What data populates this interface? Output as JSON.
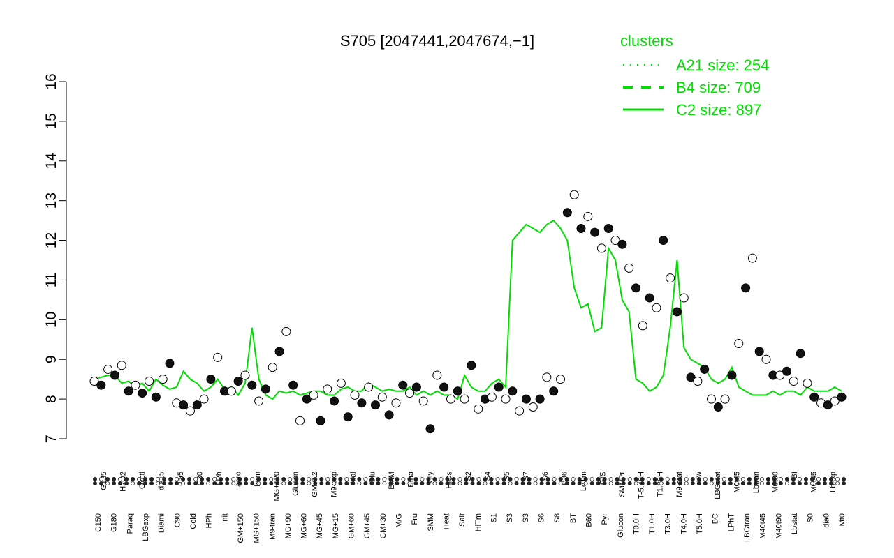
{
  "chart_data": {
    "type": "line",
    "title": "S705 [2047441,2047674,−1]",
    "xlabel": "",
    "ylabel": "",
    "ylim": [
      7,
      16
    ],
    "yticks": [
      7,
      8,
      9,
      10,
      11,
      12,
      13,
      14,
      15,
      16
    ],
    "grid": false,
    "legend_position": "top-right",
    "legend": {
      "title": "clusters",
      "entries": [
        {
          "label": "A21 size: 254",
          "style": "dotted"
        },
        {
          "label": "B4 size: 709",
          "style": "dashed"
        },
        {
          "label": "C2 size: 897",
          "style": "solid"
        }
      ]
    },
    "colors": {
      "series": "#00dd00",
      "point_fill": "#ffffff",
      "point_dark": "#111111",
      "axis": "#000000"
    },
    "x_tick_labels_top": [
      "G135",
      "H2O2",
      "Oxctl",
      "dia15",
      "dia5",
      "C30",
      "LPh",
      "aero",
      "ferm",
      "MG+120",
      "Glucon",
      "GM-0.2",
      "M9-exp",
      "Mal",
      "Glu",
      "BMM",
      "Etha",
      "Gly",
      "HiOs",
      "S2",
      "S4",
      "S5",
      "S7",
      "S6",
      "B36",
      "LoTm",
      "G/S",
      "SMMPr",
      "T-5.40H",
      "T1.30H",
      "M9-stat",
      "Sw",
      "LBGstat",
      "M0t45",
      "Lbtran",
      "M0t90",
      "BI",
      "M0t45",
      "Lbexp"
    ],
    "x_tick_labels_bottom": [
      "G150",
      "G180",
      "Paraq",
      "LBGexp",
      "Diami",
      "C90",
      "Cold",
      "HPh",
      "nit",
      "GM+150",
      "MG+150",
      "M9-tran",
      "MG+90",
      "MG+60",
      "MG+45",
      "MG+15",
      "GM+60",
      "GM+45",
      "GM+30",
      "M/G",
      "Fru",
      "SMM",
      "Heat",
      "Salt",
      "HiTm",
      "S1",
      "S3",
      "S3",
      "S6",
      "S8",
      "BT",
      "B60",
      "Pyr",
      "Glucon",
      "T0.0H",
      "T1.0H",
      "T3.0H",
      "T4.0H",
      "T5.0H",
      "BC",
      "LPhT",
      "LBGtran",
      "M40t45",
      "M40t90",
      "Lbstat",
      "S0",
      "dia0",
      "Mt0"
    ],
    "line": [
      8.5,
      8.55,
      8.6,
      8.6,
      8.4,
      8.45,
      8.3,
      8.4,
      8.2,
      8.5,
      8.35,
      8.25,
      8.3,
      8.7,
      8.5,
      8.4,
      8.2,
      8.3,
      8.5,
      8.25,
      8.3,
      8.1,
      8.4,
      9.8,
      8.5,
      8.1,
      8.0,
      8.2,
      8.15,
      8.2,
      8.1,
      8.15,
      8.2,
      8.2,
      8.1,
      8.1,
      8.25,
      8.3,
      8.2,
      8.2,
      8.4,
      8.3,
      8.2,
      8.25,
      8.2,
      8.2,
      8.3,
      8.1,
      8.2,
      8.1,
      8.2,
      8.1,
      8.1,
      8.0,
      8.6,
      8.3,
      8.2,
      8.2,
      8.4,
      8.5,
      8.3,
      12.0,
      12.2,
      12.4,
      12.3,
      12.2,
      12.4,
      12.5,
      12.3,
      12.0,
      10.8,
      10.3,
      10.4,
      9.7,
      9.8,
      11.8,
      11.5,
      10.5,
      10.2,
      8.5,
      8.4,
      8.2,
      8.3,
      8.6,
      9.8,
      11.5,
      9.3,
      9.0,
      8.9,
      8.8,
      8.5,
      8.4,
      8.5,
      8.8,
      8.3,
      8.2,
      8.1,
      8.1,
      8.1,
      8.2,
      8.1,
      8.2,
      8.2,
      8.1,
      8.3,
      8.2,
      8.2,
      8.2,
      8.3,
      8.2
    ],
    "points": [
      {
        "x": 0.0,
        "y": 8.45
      },
      {
        "x": 0.8,
        "y": 8.35
      },
      {
        "x": 1.6,
        "y": 8.75
      },
      {
        "x": 2.4,
        "y": 8.6
      },
      {
        "x": 3.2,
        "y": 8.85
      },
      {
        "x": 4.0,
        "y": 8.2
      },
      {
        "x": 4.8,
        "y": 8.35
      },
      {
        "x": 5.6,
        "y": 8.15
      },
      {
        "x": 6.4,
        "y": 8.45
      },
      {
        "x": 7.2,
        "y": 8.05
      },
      {
        "x": 8.0,
        "y": 8.5
      },
      {
        "x": 8.8,
        "y": 8.9
      },
      {
        "x": 9.6,
        "y": 7.9
      },
      {
        "x": 10.4,
        "y": 7.85
      },
      {
        "x": 11.2,
        "y": 7.7
      },
      {
        "x": 12.0,
        "y": 7.85
      },
      {
        "x": 12.8,
        "y": 8.0
      },
      {
        "x": 13.6,
        "y": 8.5
      },
      {
        "x": 14.4,
        "y": 9.05
      },
      {
        "x": 15.2,
        "y": 8.2
      },
      {
        "x": 16.0,
        "y": 8.2
      },
      {
        "x": 16.8,
        "y": 8.45
      },
      {
        "x": 17.6,
        "y": 8.6
      },
      {
        "x": 18.4,
        "y": 8.35
      },
      {
        "x": 19.2,
        "y": 7.95
      },
      {
        "x": 20.0,
        "y": 8.25
      },
      {
        "x": 20.8,
        "y": 8.8
      },
      {
        "x": 21.6,
        "y": 9.2
      },
      {
        "x": 22.4,
        "y": 9.7
      },
      {
        "x": 23.2,
        "y": 8.35
      },
      {
        "x": 24.0,
        "y": 7.45
      },
      {
        "x": 24.8,
        "y": 8.0
      },
      {
        "x": 25.6,
        "y": 8.1
      },
      {
        "x": 26.4,
        "y": 7.45
      },
      {
        "x": 27.2,
        "y": 8.25
      },
      {
        "x": 28.0,
        "y": 7.95
      },
      {
        "x": 28.8,
        "y": 8.4
      },
      {
        "x": 29.6,
        "y": 7.55
      },
      {
        "x": 30.4,
        "y": 8.1
      },
      {
        "x": 31.2,
        "y": 7.9
      },
      {
        "x": 32.0,
        "y": 8.3
      },
      {
        "x": 32.8,
        "y": 7.85
      },
      {
        "x": 33.6,
        "y": 8.05
      },
      {
        "x": 34.4,
        "y": 7.6
      },
      {
        "x": 35.2,
        "y": 7.9
      },
      {
        "x": 36.0,
        "y": 8.35
      },
      {
        "x": 36.8,
        "y": 8.15
      },
      {
        "x": 37.6,
        "y": 8.3
      },
      {
        "x": 38.4,
        "y": 7.95
      },
      {
        "x": 39.2,
        "y": 7.25
      },
      {
        "x": 40.0,
        "y": 8.6
      },
      {
        "x": 40.8,
        "y": 8.3
      },
      {
        "x": 41.6,
        "y": 8.0
      },
      {
        "x": 42.4,
        "y": 8.2
      },
      {
        "x": 43.2,
        "y": 8.0
      },
      {
        "x": 44.0,
        "y": 8.85
      },
      {
        "x": 44.8,
        "y": 7.75
      },
      {
        "x": 45.6,
        "y": 8.0
      },
      {
        "x": 46.4,
        "y": 8.05
      },
      {
        "x": 47.2,
        "y": 8.3
      },
      {
        "x": 48.0,
        "y": 8.0
      },
      {
        "x": 48.8,
        "y": 8.2
      },
      {
        "x": 49.6,
        "y": 7.7
      },
      {
        "x": 50.4,
        "y": 8.0
      },
      {
        "x": 51.2,
        "y": 7.8
      },
      {
        "x": 52.0,
        "y": 8.0
      },
      {
        "x": 52.8,
        "y": 8.55
      },
      {
        "x": 53.6,
        "y": 8.2
      },
      {
        "x": 54.4,
        "y": 8.5
      },
      {
        "x": 55.2,
        "y": 12.7
      },
      {
        "x": 56.0,
        "y": 13.15
      },
      {
        "x": 56.8,
        "y": 12.3
      },
      {
        "x": 57.6,
        "y": 12.6
      },
      {
        "x": 58.4,
        "y": 12.2
      },
      {
        "x": 59.2,
        "y": 11.8
      },
      {
        "x": 60.0,
        "y": 12.3
      },
      {
        "x": 60.8,
        "y": 12.0
      },
      {
        "x": 61.6,
        "y": 11.9
      },
      {
        "x": 62.4,
        "y": 11.3
      },
      {
        "x": 63.2,
        "y": 10.8
      },
      {
        "x": 64.0,
        "y": 9.85
      },
      {
        "x": 64.8,
        "y": 10.55
      },
      {
        "x": 65.6,
        "y": 10.3
      },
      {
        "x": 66.4,
        "y": 12.0
      },
      {
        "x": 67.2,
        "y": 11.05
      },
      {
        "x": 68.0,
        "y": 10.2
      },
      {
        "x": 68.8,
        "y": 10.55
      },
      {
        "x": 69.6,
        "y": 8.55
      },
      {
        "x": 70.4,
        "y": 8.45
      },
      {
        "x": 71.2,
        "y": 8.75
      },
      {
        "x": 72.0,
        "y": 8.0
      },
      {
        "x": 72.8,
        "y": 7.8
      },
      {
        "x": 73.6,
        "y": 8.0
      },
      {
        "x": 74.4,
        "y": 8.6
      },
      {
        "x": 75.2,
        "y": 9.4
      },
      {
        "x": 76.0,
        "y": 10.8
      },
      {
        "x": 76.8,
        "y": 11.55
      },
      {
        "x": 77.6,
        "y": 9.2
      },
      {
        "x": 78.4,
        "y": 9.0
      },
      {
        "x": 79.2,
        "y": 8.6
      },
      {
        "x": 80.0,
        "y": 8.6
      },
      {
        "x": 80.8,
        "y": 8.7
      },
      {
        "x": 81.6,
        "y": 8.45
      },
      {
        "x": 82.4,
        "y": 9.15
      },
      {
        "x": 83.2,
        "y": 8.4
      },
      {
        "x": 84.0,
        "y": 8.05
      },
      {
        "x": 84.8,
        "y": 7.9
      },
      {
        "x": 85.6,
        "y": 7.85
      },
      {
        "x": 86.4,
        "y": 7.95
      },
      {
        "x": 87.2,
        "y": 8.05
      }
    ]
  }
}
